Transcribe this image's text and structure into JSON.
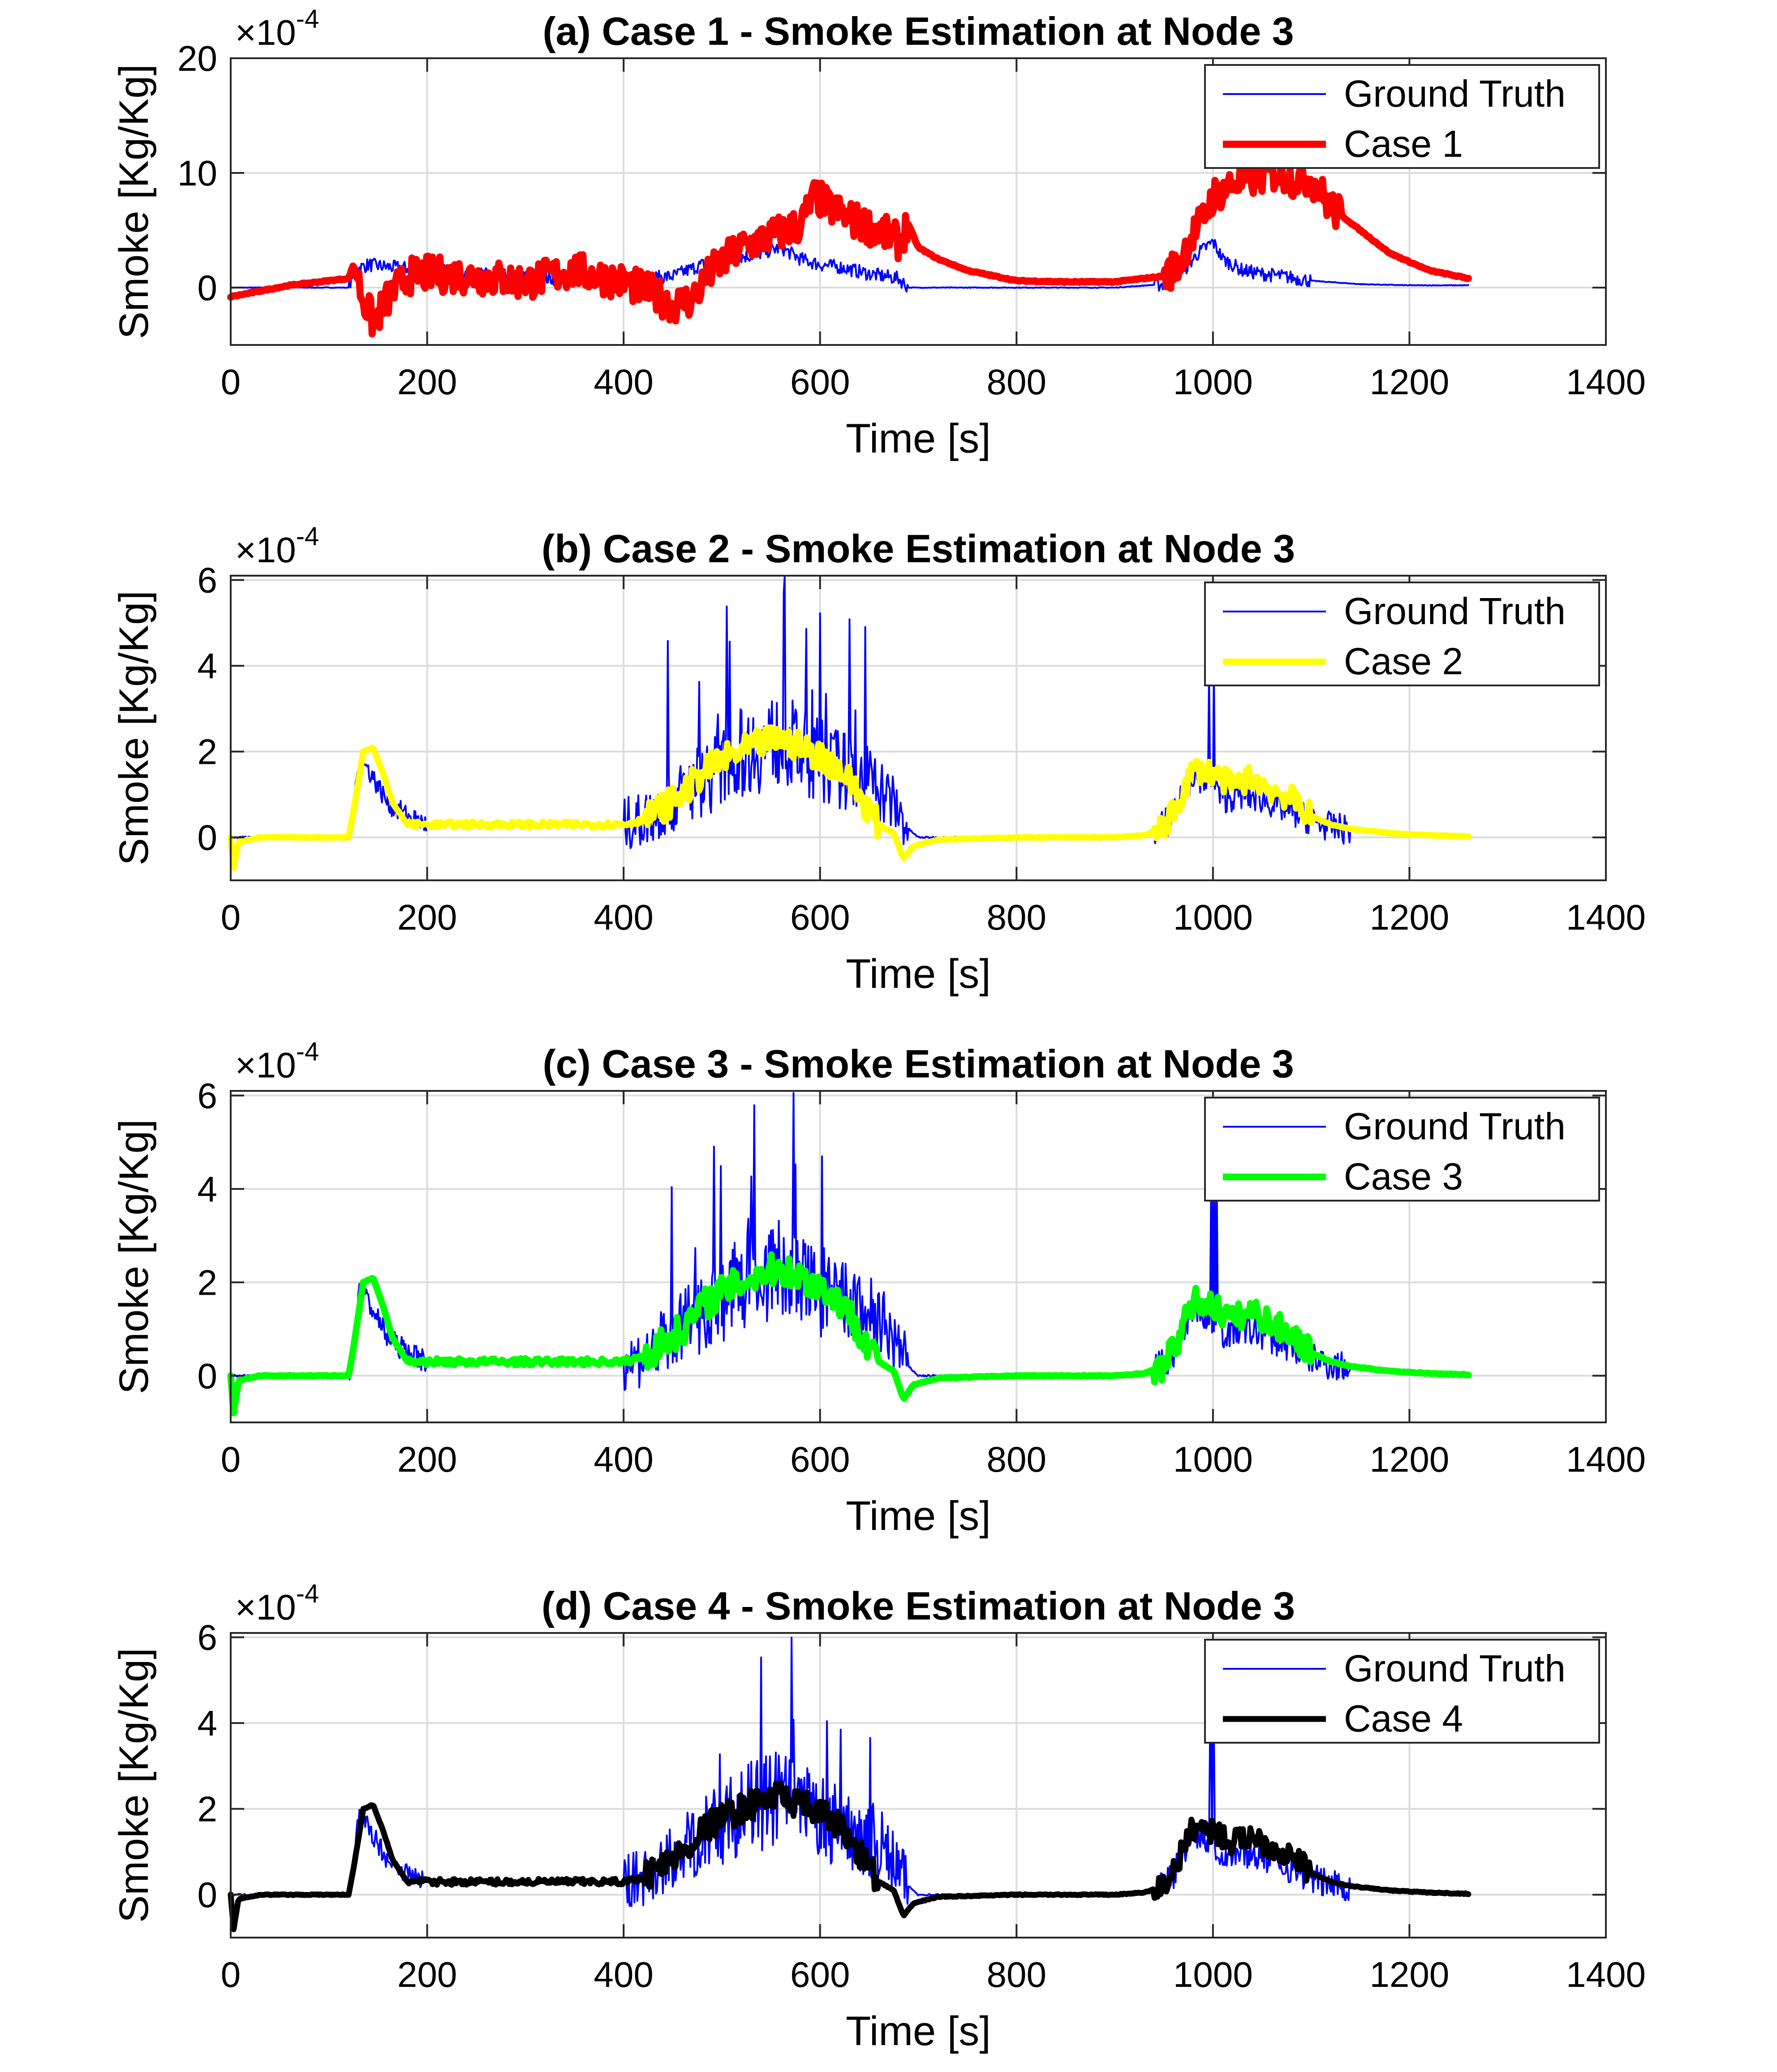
{
  "figure": {
    "xlabel": "Time [s]",
    "ylabel": "Smoke [Kg/Kg]",
    "exponent_base": "×10",
    "exponent_power": "-4"
  },
  "colors": {
    "ground_truth": "#0000ff",
    "grid": "#dcdcdc",
    "axes": "#262626"
  },
  "chart_data": [
    {
      "type": "line",
      "title": "(a) Case 1 - Smoke Estimation at Node 3",
      "xlabel": "Time [s]",
      "ylabel": "Smoke [Kg/Kg]",
      "exponent": "×10^-4",
      "xlim": [
        0,
        1400
      ],
      "ylim": [
        -5,
        20
      ],
      "xticks": [
        0,
        200,
        400,
        600,
        800,
        1000,
        1200,
        1400
      ],
      "yticks": [
        0,
        10,
        20
      ],
      "grid": true,
      "legend": "top-right",
      "series": [
        {
          "name": "Ground Truth",
          "color": "#0000ff",
          "width": "thin",
          "x": [
            0,
            120,
            125,
            140,
            160,
            200,
            250,
            300,
            350,
            400,
            450,
            480,
            500,
            530,
            560,
            580,
            600,
            620,
            650,
            680,
            690,
            800,
            900,
            950,
            970,
            985,
            1000,
            1010,
            1030,
            1050,
            1070,
            1100,
            1150,
            1200,
            1260
          ],
          "y": [
            0,
            0,
            1.5,
            2,
            1.8,
            1.6,
            1.2,
            0.9,
            0.7,
            0.6,
            1,
            2,
            2.5,
            2.8,
            3.5,
            2.5,
            2,
            1.8,
            1.2,
            0.8,
            0,
            0,
            0,
            0.3,
            1.5,
            3,
            4,
            2.5,
            1.5,
            1.2,
            1,
            0.6,
            0.3,
            0.2,
            0.2
          ]
        },
        {
          "name": "Case 1",
          "color": "#ff0000",
          "width": "thick",
          "x": [
            0,
            60,
            120,
            125,
            135,
            145,
            160,
            180,
            200,
            250,
            300,
            350,
            400,
            430,
            450,
            470,
            490,
            520,
            550,
            580,
            595,
            610,
            630,
            660,
            680,
            690,
            700,
            720,
            750,
            800,
            850,
            900,
            920,
            950,
            965,
            975,
            990,
            1000,
            1020,
            1060,
            1080,
            1100,
            1120,
            1150,
            1180,
            1220,
            1260
          ],
          "y": [
            -0.8,
            0.2,
            0.8,
            2,
            -1,
            -3,
            -1,
            1,
            1.2,
            1,
            0.5,
            1.5,
            0.5,
            -0.5,
            -1.5,
            -1,
            1.5,
            3.5,
            4.5,
            5.5,
            8,
            7,
            6,
            5,
            4,
            5.5,
            3.5,
            2.5,
            1.5,
            0.6,
            0.5,
            0.5,
            0.7,
            1,
            2,
            4,
            6,
            8,
            9,
            10,
            9.5,
            9.5,
            7,
            5,
            3,
            1.5,
            0.8
          ]
        }
      ]
    },
    {
      "type": "line",
      "title": "(b) Case 2 - Smoke Estimation at Node 3",
      "xlabel": "Time [s]",
      "ylabel": "Smoke [Kg/Kg]",
      "exponent": "×10^-4",
      "xlim": [
        0,
        1400
      ],
      "ylim": [
        -1,
        6.1
      ],
      "xticks": [
        0,
        200,
        400,
        600,
        800,
        1000,
        1200,
        1400
      ],
      "yticks": [
        0,
        2,
        4,
        6
      ],
      "grid": true,
      "legend": "top-right",
      "series": [
        {
          "name": "Ground Truth",
          "color": "#0000ff",
          "width": "thin",
          "x": [
            0,
            120,
            125,
            130,
            140,
            150,
            160,
            180,
            200,
            300,
            400,
            420,
            440,
            460,
            480,
            500,
            520,
            540,
            560,
            580,
            600,
            620,
            640,
            660,
            680,
            690,
            700,
            800,
            900,
            940,
            960,
            980,
            1000,
            1010,
            1030,
            1050,
            1070,
            1090,
            1110,
            1130,
            1160,
            1200,
            1260
          ],
          "y": [
            0,
            0,
            0.5,
            1.8,
            1.6,
            1.2,
            0.8,
            0.5,
            0.3,
            0.3,
            0.3,
            0.4,
            0.7,
            1,
            1.4,
            1.6,
            2,
            2.1,
            2.3,
            2,
            1.8,
            1.6,
            1.4,
            1.2,
            0.6,
            0.2,
            0,
            0,
            0,
            0.1,
            0.5,
            1.5,
            1.2,
            0.9,
            1,
            0.9,
            0.7,
            0.5,
            0.3,
            0.2,
            0.15,
            0.1,
            0.05
          ]
        },
        {
          "name": "Case 2",
          "color": "#ffff00",
          "width": "thick",
          "x": [
            0,
            3,
            8,
            30,
            120,
            125,
            135,
            145,
            155,
            165,
            180,
            200,
            250,
            300,
            350,
            400,
            420,
            440,
            460,
            480,
            500,
            520,
            540,
            560,
            580,
            600,
            620,
            640,
            660,
            675,
            685,
            695,
            720,
            800,
            900,
            930,
            950,
            965,
            980,
            1000,
            1020,
            1040,
            1060,
            1080,
            1100,
            1120,
            1140,
            1180,
            1220,
            1260
          ],
          "y": [
            0,
            -0.7,
            -0.1,
            0,
            0,
            0.6,
            2,
            2.1,
            1.5,
            0.8,
            0.3,
            0.3,
            0.3,
            0.3,
            0.3,
            0.3,
            0.4,
            0.7,
            1,
            1.5,
            1.8,
            2,
            2.2,
            2.3,
            2.1,
            1.9,
            1.6,
            1,
            0.3,
            0.1,
            -0.5,
            -0.2,
            -0.05,
            0,
            0,
            0.05,
            0.2,
            0.8,
            1.6,
            1.5,
            1.2,
            1.4,
            1.1,
            0.9,
            0.5,
            0.3,
            0.2,
            0.1,
            0.05,
            0.02
          ]
        }
      ]
    },
    {
      "type": "line",
      "title": "(c) Case 3 - Smoke Estimation at Node 3",
      "xlabel": "Time [s]",
      "ylabel": "Smoke [Kg/Kg]",
      "exponent": "×10^-4",
      "xlim": [
        0,
        1400
      ],
      "ylim": [
        -1,
        6.1
      ],
      "xticks": [
        0,
        200,
        400,
        600,
        800,
        1000,
        1200,
        1400
      ],
      "yticks": [
        0,
        2,
        4,
        6
      ],
      "grid": true,
      "legend": "top-right",
      "series": [
        {
          "name": "Ground Truth",
          "color": "#0000ff",
          "width": "thin",
          "x": [
            0,
            120,
            125,
            130,
            140,
            150,
            160,
            180,
            200,
            300,
            400,
            420,
            440,
            460,
            480,
            500,
            520,
            540,
            560,
            580,
            600,
            620,
            640,
            660,
            680,
            690,
            700,
            800,
            900,
            940,
            960,
            980,
            1000,
            1010,
            1030,
            1050,
            1070,
            1090,
            1110,
            1130,
            1160,
            1200,
            1260
          ],
          "y": [
            0,
            0,
            0.5,
            1.8,
            1.6,
            1.2,
            0.8,
            0.5,
            0.3,
            0.3,
            0.3,
            0.4,
            0.7,
            1,
            1.4,
            1.6,
            2,
            2.1,
            2.3,
            2,
            1.8,
            1.6,
            1.4,
            1.2,
            0.6,
            0.2,
            0,
            0,
            0,
            0.1,
            0.5,
            1.5,
            1.2,
            0.9,
            1,
            0.9,
            0.7,
            0.5,
            0.3,
            0.2,
            0.15,
            0.1,
            0.05
          ]
        },
        {
          "name": "Case 3",
          "color": "#00ff00",
          "width": "thick",
          "x": [
            0,
            3,
            8,
            30,
            120,
            125,
            135,
            145,
            155,
            165,
            180,
            200,
            250,
            300,
            350,
            400,
            420,
            440,
            460,
            480,
            500,
            520,
            540,
            560,
            580,
            600,
            620,
            640,
            660,
            675,
            685,
            695,
            720,
            800,
            900,
            930,
            950,
            965,
            980,
            1000,
            1020,
            1040,
            1060,
            1080,
            1100,
            1120,
            1140,
            1180,
            1220,
            1260
          ],
          "y": [
            0,
            -0.8,
            -0.1,
            0,
            0,
            0.6,
            2,
            2.1,
            1.5,
            0.8,
            0.3,
            0.3,
            0.3,
            0.3,
            0.3,
            0.3,
            0.4,
            0.7,
            1,
            1.5,
            1.8,
            2,
            2.2,
            2.3,
            2.1,
            1.9,
            1.6,
            1,
            0.3,
            0.1,
            -0.5,
            -0.2,
            -0.05,
            0,
            0,
            0.05,
            0.2,
            0.8,
            1.6,
            1.5,
            1.2,
            1.4,
            1.1,
            0.9,
            0.5,
            0.3,
            0.2,
            0.1,
            0.05,
            0.02
          ]
        }
      ]
    },
    {
      "type": "line",
      "title": "(d) Case 4 - Smoke Estimation at Node 3",
      "xlabel": "Time [s]",
      "ylabel": "Smoke [Kg/Kg]",
      "exponent": "×10^-4",
      "xlim": [
        0,
        1400
      ],
      "ylim": [
        -1,
        6.1
      ],
      "xticks": [
        0,
        200,
        400,
        600,
        800,
        1000,
        1200,
        1400
      ],
      "yticks": [
        0,
        2,
        4,
        6
      ],
      "grid": true,
      "legend": "top-right",
      "series": [
        {
          "name": "Ground Truth",
          "color": "#0000ff",
          "width": "thin",
          "x": [
            0,
            120,
            125,
            130,
            140,
            150,
            160,
            180,
            200,
            300,
            400,
            420,
            440,
            460,
            480,
            500,
            520,
            540,
            560,
            580,
            600,
            620,
            640,
            660,
            680,
            690,
            700,
            800,
            900,
            940,
            960,
            980,
            1000,
            1010,
            1030,
            1050,
            1070,
            1090,
            1110,
            1130,
            1160,
            1200,
            1260
          ],
          "y": [
            0,
            0,
            0.5,
            1.8,
            1.6,
            1.2,
            0.8,
            0.5,
            0.3,
            0.3,
            0.3,
            0.4,
            0.7,
            1,
            1.4,
            1.6,
            2,
            2.1,
            2.3,
            2,
            1.8,
            1.6,
            1.4,
            1.2,
            0.6,
            0.2,
            0,
            0,
            0,
            0.1,
            0.5,
            1.5,
            1.2,
            0.9,
            1,
            0.9,
            0.7,
            0.5,
            0.3,
            0.2,
            0.15,
            0.1,
            0.05
          ]
        },
        {
          "name": "Case 4",
          "color": "#000000",
          "width": "thick",
          "x": [
            0,
            3,
            8,
            30,
            120,
            125,
            135,
            145,
            155,
            165,
            180,
            200,
            250,
            300,
            350,
            400,
            420,
            440,
            460,
            480,
            500,
            520,
            540,
            560,
            580,
            600,
            620,
            640,
            660,
            675,
            685,
            695,
            720,
            800,
            900,
            930,
            950,
            965,
            980,
            1000,
            1020,
            1040,
            1060,
            1080,
            1100,
            1120,
            1140,
            1180,
            1220,
            1260
          ],
          "y": [
            0,
            -0.8,
            -0.1,
            0,
            0,
            0.6,
            2,
            2.1,
            1.5,
            0.8,
            0.3,
            0.3,
            0.3,
            0.3,
            0.3,
            0.3,
            0.4,
            0.7,
            1,
            1.5,
            1.8,
            2,
            2.2,
            2.3,
            2.1,
            1.9,
            1.6,
            1,
            0.3,
            0.1,
            -0.5,
            -0.2,
            -0.05,
            0,
            0,
            0.05,
            0.2,
            0.8,
            1.6,
            1.5,
            1.2,
            1.4,
            1.1,
            0.9,
            0.5,
            0.3,
            0.2,
            0.1,
            0.05,
            0.02
          ]
        }
      ]
    }
  ]
}
